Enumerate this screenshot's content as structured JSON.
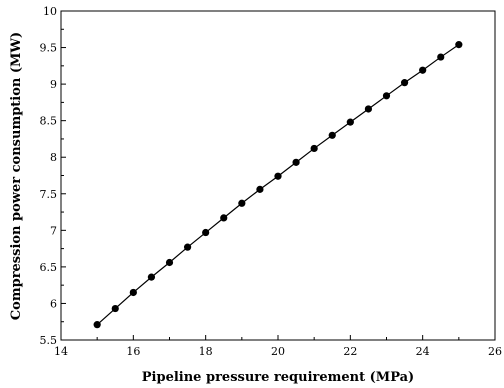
{
  "chart_data": {
    "type": "line",
    "title": "",
    "xlabel": "Pipeline pressure requirement (MPa)",
    "ylabel": "Compression power consumption (MW)",
    "xlim": [
      14,
      26
    ],
    "ylim": [
      5.5,
      10
    ],
    "xticks": [
      14,
      16,
      18,
      20,
      22,
      24,
      26
    ],
    "yticks": [
      5.5,
      6,
      6.5,
      7,
      7.5,
      8,
      8.5,
      9,
      9.5,
      10
    ],
    "xtick_labels": [
      "14",
      "16",
      "18",
      "20",
      "22",
      "24",
      "26"
    ],
    "ytick_labels": [
      "5.5",
      "6",
      "6.5",
      "7",
      "7.5",
      "8",
      "8.5",
      "9",
      "9.5",
      "10"
    ],
    "grid": false,
    "legend": "none",
    "series": [
      {
        "marker": "filled-circle",
        "color": "#000000",
        "x": [
          15,
          15.5,
          16,
          16.5,
          17,
          17.5,
          18,
          18.5,
          19,
          19.5,
          20,
          20.5,
          21,
          21.5,
          22,
          22.5,
          23,
          23.5,
          24,
          24.5,
          25
        ],
        "y": [
          5.71,
          5.93,
          6.15,
          6.36,
          6.56,
          6.77,
          6.97,
          7.17,
          7.37,
          7.56,
          7.74,
          7.93,
          8.12,
          8.3,
          8.48,
          8.66,
          8.84,
          9.02,
          9.19,
          9.37,
          9.54
        ]
      }
    ]
  }
}
